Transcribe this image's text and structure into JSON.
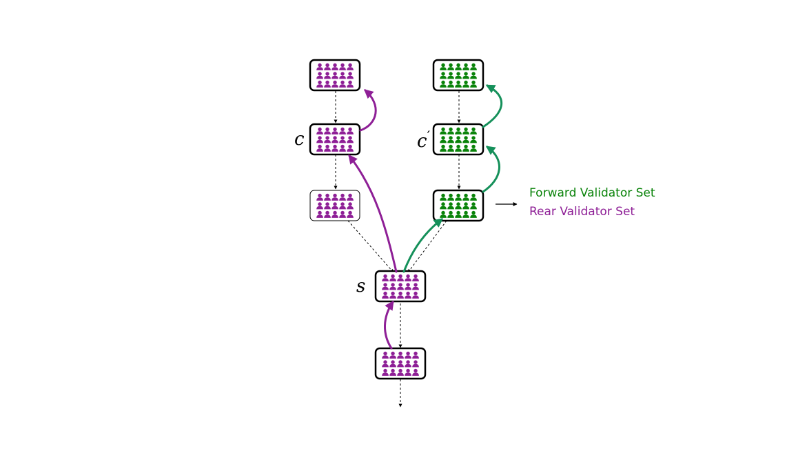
{
  "colors": {
    "rear": "#8e1f96",
    "forward": "#0a830a",
    "forward_arrow": "#15905a",
    "border": "#000000"
  },
  "labels": {
    "c": "c",
    "c_prime": "c",
    "prime_mark": "′",
    "s": "s"
  },
  "legend": {
    "forward": "Forward Validator Set",
    "rear": "Rear Validator Set"
  },
  "blocks": [
    {
      "id": "rear-top",
      "set": "rear"
    },
    {
      "id": "rear-c",
      "set": "rear"
    },
    {
      "id": "rear-low",
      "set": "rear"
    },
    {
      "id": "fwd-top",
      "set": "forward"
    },
    {
      "id": "fwd-cprime",
      "set": "forward"
    },
    {
      "id": "fwd-low",
      "set": "forward"
    },
    {
      "id": "block-s",
      "set": "rear"
    },
    {
      "id": "block-bottom",
      "set": "rear"
    }
  ],
  "icons": [
    "person-icon"
  ]
}
